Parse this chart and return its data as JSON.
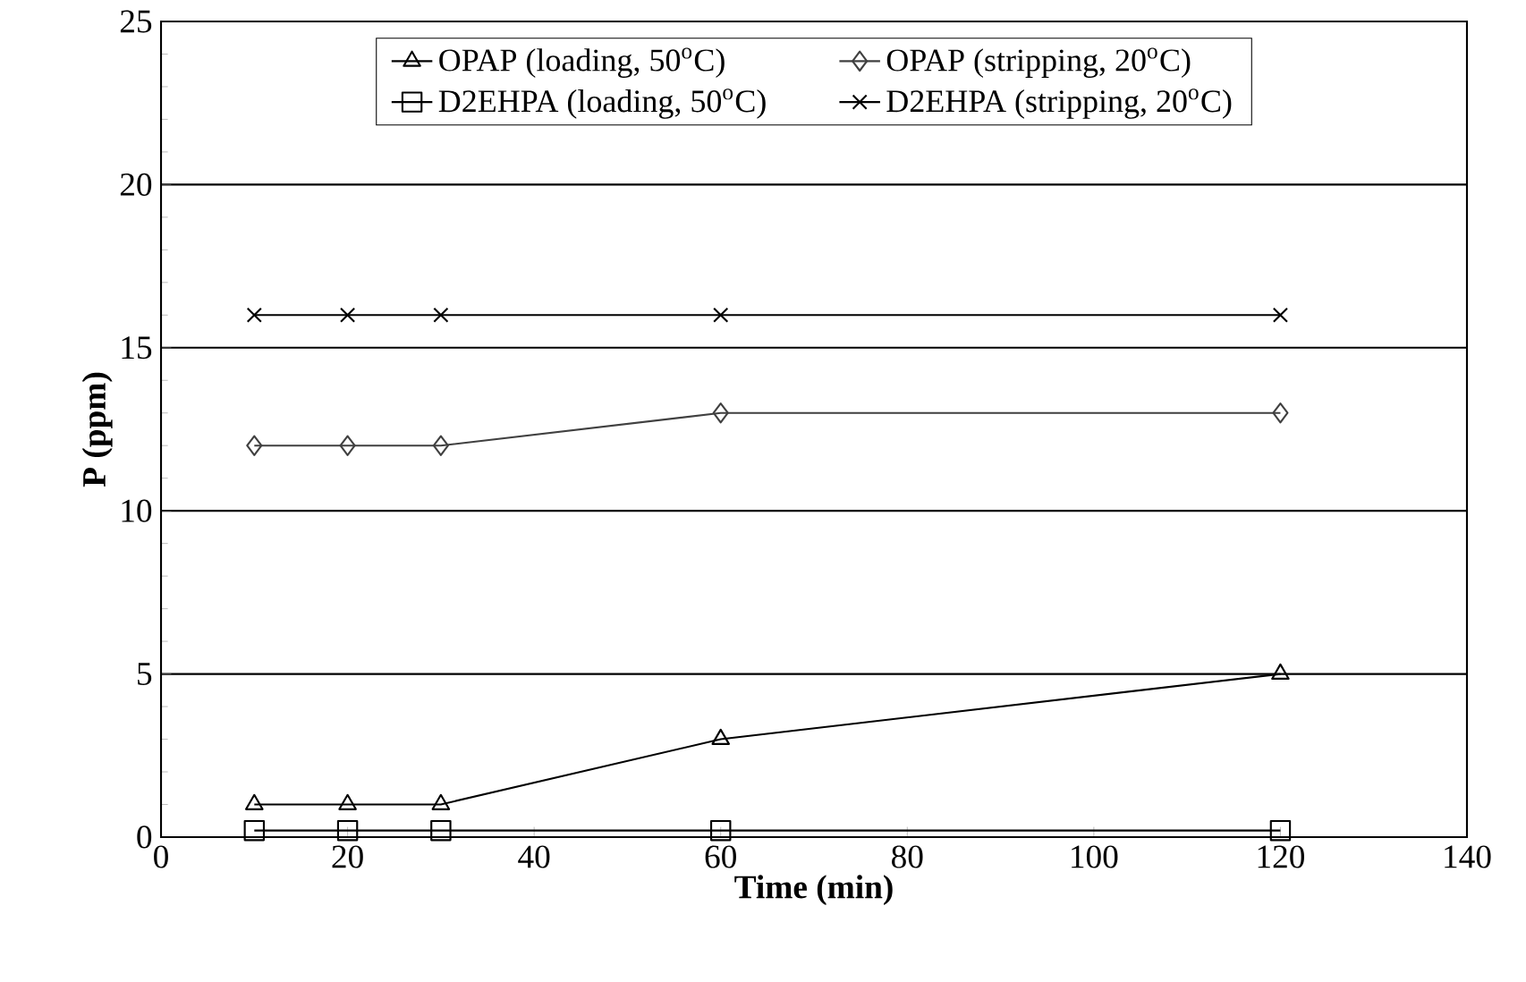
{
  "chart_data": {
    "type": "line",
    "xlabel": "Time (min)",
    "ylabel": "P (ppm)",
    "xlim": [
      0,
      140
    ],
    "xticks": [
      0,
      20,
      40,
      60,
      80,
      100,
      120,
      140
    ],
    "ylim": [
      0,
      25
    ],
    "yticks": [
      0,
      5,
      10,
      15,
      20,
      25
    ],
    "grid": "y",
    "legend": "top",
    "x": [
      10,
      20,
      30,
      60,
      120
    ],
    "series": [
      {
        "name": "OPAP (loading, 50$^{o}$C)",
        "color": "#000000",
        "marker": "triangle",
        "values": [
          1,
          1,
          1,
          3,
          5
        ]
      },
      {
        "name": "OPAP (stripping, 20$^{o}$C)",
        "color": "#404040",
        "marker": "diamond",
        "values": [
          12,
          12,
          12,
          13,
          13
        ]
      },
      {
        "name": "D2EHPA (loading, 50$^{o}$C)",
        "color": "#000000",
        "marker": "square",
        "values": [
          0.2,
          0.2,
          0.2,
          0.2,
          0.2
        ]
      },
      {
        "name": "D2EHPA (stripping, 20$^{o}$C)",
        "color": "#000000",
        "marker": "cross",
        "values": [
          16,
          16,
          16,
          16,
          16
        ]
      }
    ]
  }
}
